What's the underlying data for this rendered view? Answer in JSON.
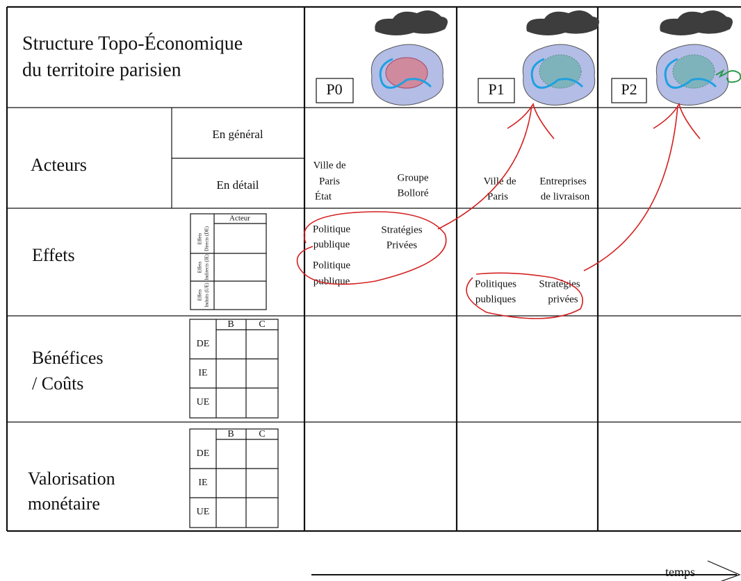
{
  "header": {
    "title": [
      "Structure Topo-Économique",
      "du territoire parisien"
    ],
    "periods": [
      "P0",
      "P1",
      "P2"
    ]
  },
  "rows": {
    "actors": {
      "label": "Acteurs",
      "sub": [
        "En général",
        "En détail"
      ]
    },
    "effects": {
      "label": "Effets",
      "legend": {
        "header": "Acteur",
        "rows": [
          [
            "Effets",
            "Directs (DE)"
          ],
          [
            "Effets",
            "Indirects (IE)"
          ],
          [
            "Effets",
            "Induits (UE)"
          ]
        ]
      }
    },
    "benefits": {
      "label": [
        "Bénéfices",
        "/ Coûts"
      ],
      "legend": {
        "columns": [
          "B",
          "C"
        ],
        "rows": [
          "DE",
          "IE",
          "UE"
        ]
      }
    },
    "valuation": {
      "label": [
        "Valorisation",
        "monétaire"
      ],
      "legend": {
        "columns": [
          "B",
          "C"
        ],
        "rows": [
          "DE",
          "IE",
          "UE"
        ]
      }
    }
  },
  "cells": {
    "p0_actors": {
      "public": [
        "Ville de",
        "Paris",
        "État"
      ],
      "private": [
        "Groupe",
        "Bolloré"
      ]
    },
    "p1_actors": {
      "public": [
        "Ville de",
        "Paris"
      ],
      "private": [
        "Entreprises",
        "de livraison"
      ]
    },
    "p0_effects": {
      "public": [
        "Politique",
        "publique"
      ],
      "private": [
        "Stratégies",
        "Privées"
      ],
      "public2": [
        "Politique",
        "publique"
      ]
    },
    "p1_effects": {
      "public": [
        "Politiques",
        "publiques"
      ],
      "private": [
        "Stratégies",
        "privées"
      ]
    }
  },
  "axis": {
    "label": "temps"
  }
}
